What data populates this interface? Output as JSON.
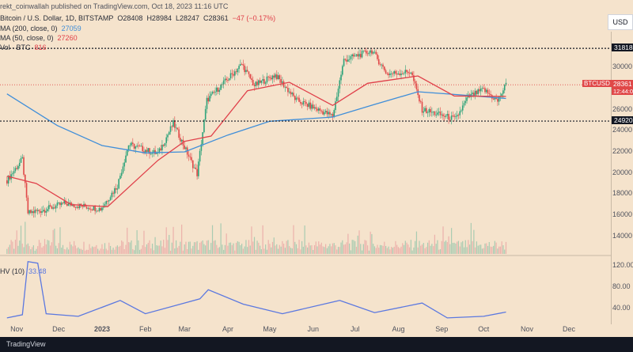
{
  "header": {
    "byline": "rekt_coinwallah published on TradingView.com, Oct 18, 2023 11:16 UTC",
    "symbol": "Bitcoin / U.S. Dollar, 1D, BITSTAMP",
    "open": "O28408",
    "high": "H28984",
    "low": "L28247",
    "close": "C28361",
    "change": "−47 (−0.17%)"
  },
  "indicators": {
    "ma200": {
      "label": "MA (200, close, 0)",
      "value": "27059",
      "color": "#3f8ed9"
    },
    "ma50": {
      "label": "MA (50, close, 0)",
      "value": "27260",
      "color": "#e0404a"
    },
    "vol": {
      "label": "Vol · BTC",
      "value": "816",
      "color": "#e0404a"
    },
    "rv": {
      "label": "HV (10)",
      "value": "33.48",
      "color": "#5b78e0"
    }
  },
  "currency_button": "USD",
  "footer": {
    "brand": "TradingView"
  },
  "chart_data": {
    "type": "candlestick",
    "symbol": "BTCUSD",
    "last_price": "28361",
    "countdown": "12:44:0",
    "levels": [
      {
        "label": "31818",
        "value": 31818
      },
      {
        "label": "24920",
        "value": 24920
      }
    ],
    "price_ticks": [
      14000,
      16000,
      18000,
      20000,
      22000,
      24000,
      26000,
      28000,
      30000
    ],
    "osc_ticks": [
      "120.00",
      "80.00",
      "40.00"
    ],
    "x_ticks": [
      "Nov",
      "Dec",
      "2023",
      "Feb",
      "Mar",
      "Apr",
      "May",
      "Jun",
      "Jul",
      "Aug",
      "Sep",
      "Oct",
      "Nov",
      "Dec"
    ],
    "price_path": [
      [
        "2022-10-25",
        19300
      ],
      [
        "2022-11-05",
        21300
      ],
      [
        "2022-11-09",
        16200
      ],
      [
        "2022-11-20",
        16500
      ],
      [
        "2022-12-05",
        17100
      ],
      [
        "2022-12-31",
        16600
      ],
      [
        "2023-01-12",
        18800
      ],
      [
        "2023-01-20",
        22700
      ],
      [
        "2023-02-10",
        21800
      ],
      [
        "2023-02-21",
        24700
      ],
      [
        "2023-03-10",
        19900
      ],
      [
        "2023-03-17",
        26900
      ],
      [
        "2023-04-11",
        30300
      ],
      [
        "2023-04-20",
        28300
      ],
      [
        "2023-05-05",
        29300
      ],
      [
        "2023-05-20",
        26900
      ],
      [
        "2023-06-15",
        25400
      ],
      [
        "2023-06-23",
        30700
      ],
      [
        "2023-07-13",
        31600
      ],
      [
        "2023-07-24",
        29400
      ],
      [
        "2023-08-10",
        29600
      ],
      [
        "2023-08-18",
        26000
      ],
      [
        "2023-09-11",
        25100
      ],
      [
        "2023-09-20",
        27200
      ],
      [
        "2023-10-01",
        27900
      ],
      [
        "2023-10-11",
        26800
      ],
      [
        "2023-10-17",
        28400
      ]
    ],
    "ma200_path": [
      [
        "2022-10-25",
        27500
      ],
      [
        "2022-11-30",
        24500
      ],
      [
        "2023-01-01",
        22600
      ],
      [
        "2023-02-01",
        21900
      ],
      [
        "2023-03-01",
        22000
      ],
      [
        "2023-04-01",
        23600
      ],
      [
        "2023-05-01",
        24900
      ],
      [
        "2023-06-15",
        25300
      ],
      [
        "2023-07-15",
        26500
      ],
      [
        "2023-08-15",
        27700
      ],
      [
        "2023-09-15",
        27400
      ],
      [
        "2023-10-17",
        27059
      ]
    ],
    "ma50_path": [
      [
        "2022-10-25",
        19700
      ],
      [
        "2022-11-15",
        19000
      ],
      [
        "2022-12-10",
        17000
      ],
      [
        "2023-01-05",
        16800
      ],
      [
        "2023-02-10",
        21200
      ],
      [
        "2023-03-01",
        23000
      ],
      [
        "2023-03-20",
        23500
      ],
      [
        "2023-04-15",
        27800
      ],
      [
        "2023-05-15",
        28600
      ],
      [
        "2023-06-15",
        26400
      ],
      [
        "2023-07-10",
        28500
      ],
      [
        "2023-08-15",
        29200
      ],
      [
        "2023-09-10",
        27300
      ],
      [
        "2023-10-17",
        27260
      ]
    ],
    "osc_path": [
      [
        "2022-10-25",
        22
      ],
      [
        "2022-11-05",
        28
      ],
      [
        "2022-11-09",
        128
      ],
      [
        "2022-11-16",
        125
      ],
      [
        "2022-11-22",
        30
      ],
      [
        "2022-12-15",
        25
      ],
      [
        "2023-01-14",
        55
      ],
      [
        "2023-02-01",
        30
      ],
      [
        "2023-03-12",
        58
      ],
      [
        "2023-03-18",
        75
      ],
      [
        "2023-04-12",
        48
      ],
      [
        "2023-05-10",
        30
      ],
      [
        "2023-06-20",
        55
      ],
      [
        "2023-07-15",
        32
      ],
      [
        "2023-08-18",
        50
      ],
      [
        "2023-09-05",
        22
      ],
      [
        "2023-10-01",
        25
      ],
      [
        "2023-10-17",
        33
      ]
    ]
  }
}
